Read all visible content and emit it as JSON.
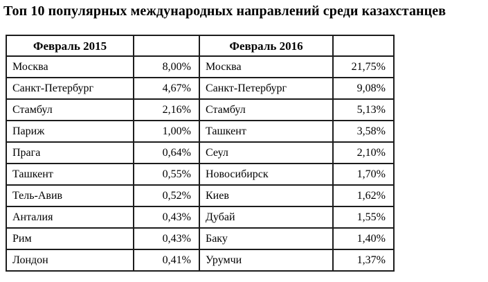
{
  "title": "Топ 10 популярных международных направлений среди казахстанцев",
  "colors": {
    "background": "#ffffff",
    "text": "#000000",
    "table_border": "#1c1c1c"
  },
  "table": {
    "header_2015": "Февраль 2015",
    "header_2016": "Февраль 2016",
    "rows": [
      {
        "city_2015": "Москва",
        "pct_2015": "8,00%",
        "city_2016": "Москва",
        "pct_2016": "21,75%"
      },
      {
        "city_2015": "Санкт-Петербург",
        "pct_2015": "4,67%",
        "city_2016": "Санкт-Петербург",
        "pct_2016": "9,08%"
      },
      {
        "city_2015": "Стамбул",
        "pct_2015": "2,16%",
        "city_2016": "Стамбул",
        "pct_2016": "5,13%"
      },
      {
        "city_2015": "Париж",
        "pct_2015": "1,00%",
        "city_2016": "Ташкент",
        "pct_2016": "3,58%"
      },
      {
        "city_2015": "Прага",
        "pct_2015": "0,64%",
        "city_2016": "Сеул",
        "pct_2016": "2,10%"
      },
      {
        "city_2015": "Ташкент",
        "pct_2015": "0,55%",
        "city_2016": "Новосибирск",
        "pct_2016": "1,70%"
      },
      {
        "city_2015": "Тель-Авив",
        "pct_2015": "0,52%",
        "city_2016": "Киев",
        "pct_2016": "1,62%"
      },
      {
        "city_2015": "Анталия",
        "pct_2015": "0,43%",
        "city_2016": "Дубай",
        "pct_2016": "1,55%"
      },
      {
        "city_2015": "Рим",
        "pct_2015": "0,43%",
        "city_2016": "Баку",
        "pct_2016": "1,40%"
      },
      {
        "city_2015": "Лондон",
        "pct_2015": "0,41%",
        "city_2016": "Урумчи",
        "pct_2016": "1,37%"
      }
    ]
  },
  "chart_data": {
    "type": "table",
    "title": "Топ 10 популярных международных направлений среди казахстанцев",
    "unit": "%",
    "decimal_separator": ",",
    "series": [
      {
        "name": "Февраль 2015",
        "categories": [
          "Москва",
          "Санкт-Петербург",
          "Стамбул",
          "Париж",
          "Прага",
          "Ташкент",
          "Тель-Авив",
          "Анталия",
          "Рим",
          "Лондон"
        ],
        "values": [
          8.0,
          4.67,
          2.16,
          1.0,
          0.64,
          0.55,
          0.52,
          0.43,
          0.43,
          0.41
        ]
      },
      {
        "name": "Февраль 2016",
        "categories": [
          "Москва",
          "Санкт-Петербург",
          "Стамбул",
          "Ташкент",
          "Сеул",
          "Новосибирск",
          "Киев",
          "Дубай",
          "Баку",
          "Урумчи"
        ],
        "values": [
          21.75,
          9.08,
          5.13,
          3.58,
          2.1,
          1.7,
          1.62,
          1.55,
          1.4,
          1.37
        ]
      }
    ]
  }
}
